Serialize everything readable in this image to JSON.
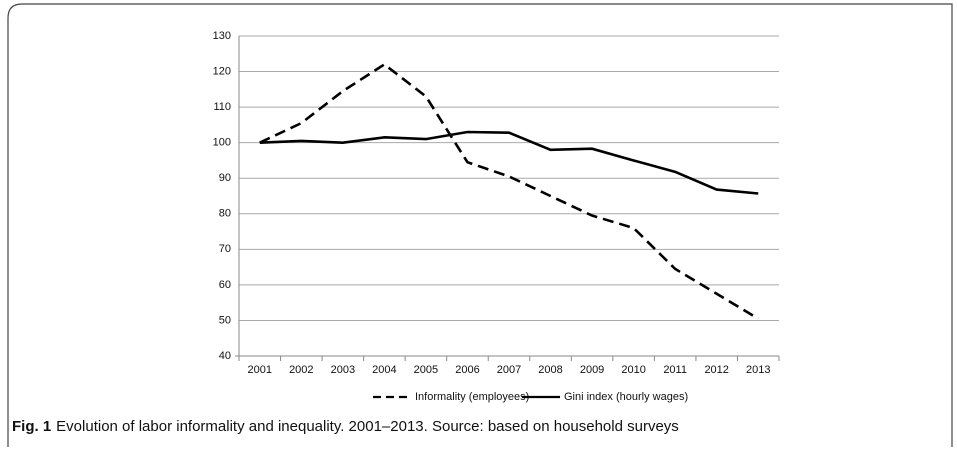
{
  "chart_data": {
    "type": "line",
    "categories": [
      "2001",
      "2002",
      "2003",
      "2004",
      "2005",
      "2006",
      "2007",
      "2008",
      "2009",
      "2010",
      "2011",
      "2012",
      "2013"
    ],
    "series": [
      {
        "name": "Informality (employees)",
        "color": "#000000",
        "dash": "dashed",
        "values": [
          100,
          105.5,
          114.5,
          122,
          113,
          94.5,
          90.5,
          85,
          79.5,
          76,
          64.5,
          57.5,
          50.5
        ]
      },
      {
        "name": "Gini index (hourly wages)",
        "color": "#000000",
        "dash": "solid",
        "values": [
          100,
          100.5,
          100,
          101.5,
          101,
          103,
          102.8,
          98,
          98.3,
          95,
          91.8,
          86.8,
          85.7
        ]
      }
    ],
    "ylim": [
      40,
      130
    ],
    "yticks": [
      40,
      50,
      60,
      70,
      80,
      90,
      100,
      110,
      120,
      130
    ],
    "grid": true,
    "legend": "bottom",
    "caption_label": "Fig. 1",
    "caption_text": "Evolution of labor informality and inequality. 2001–2013. Source: based on household surveys"
  }
}
